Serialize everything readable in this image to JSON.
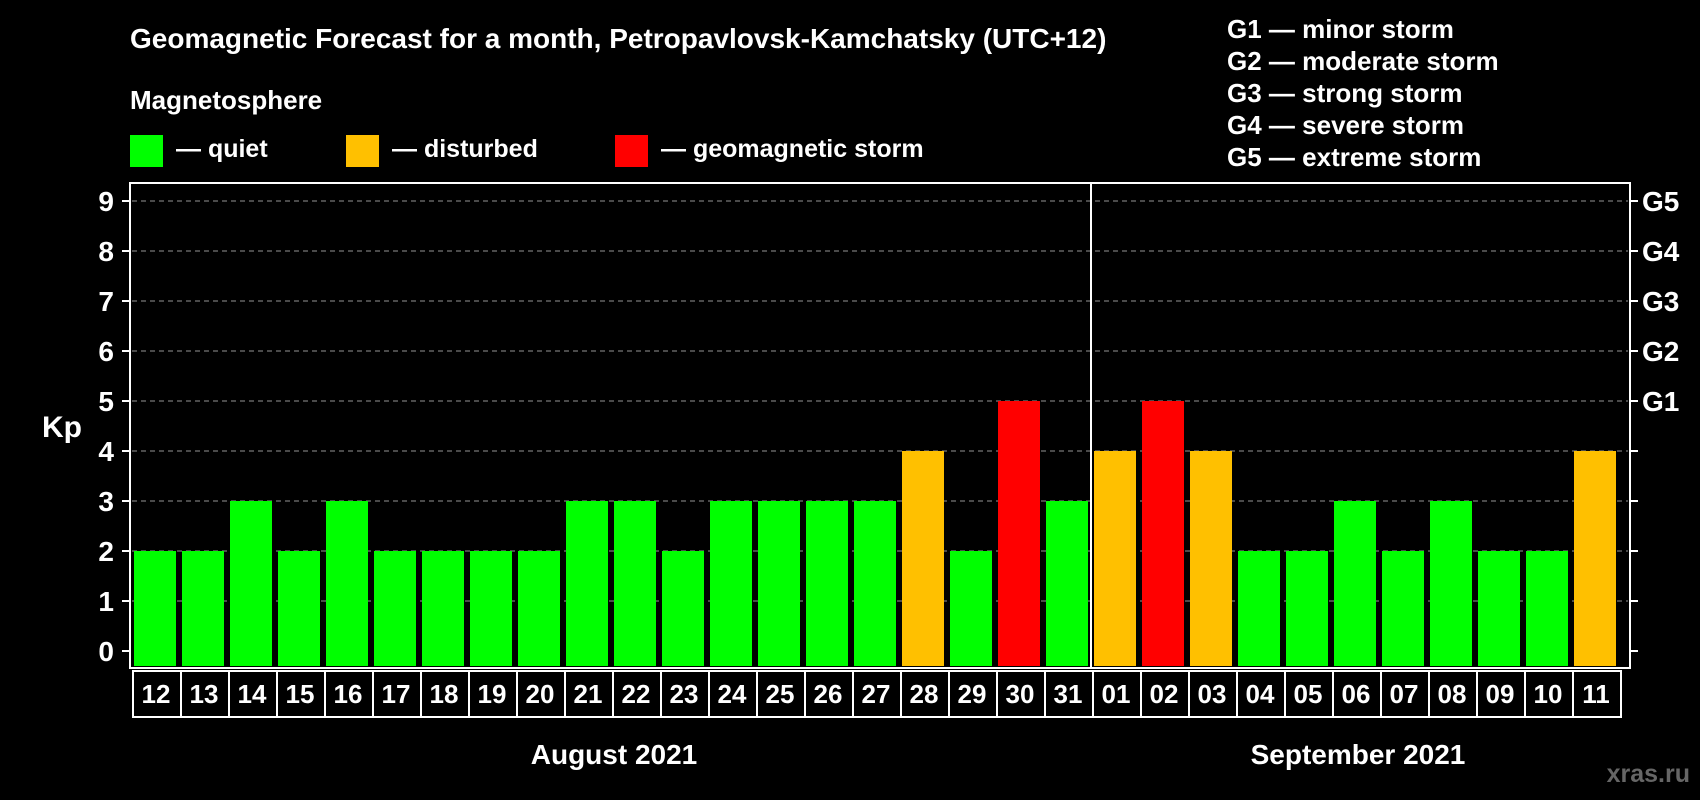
{
  "title": "Geomagnetic Forecast for a month, Petropavlovsk-Kamchatsky (UTC+12)",
  "legend": {
    "heading": "Magnetosphere",
    "items": [
      {
        "label": "— quiet",
        "color": "#00ff00"
      },
      {
        "label": "— disturbed",
        "color": "#ffc000"
      },
      {
        "label": "— geomagnetic storm",
        "color": "#ff0000"
      }
    ]
  },
  "storm_scale": [
    {
      "level": "G1",
      "text": "— minor storm"
    },
    {
      "level": "G2",
      "text": "— moderate storm"
    },
    {
      "level": "G3",
      "text": "— strong storm"
    },
    {
      "level": "G4",
      "text": "— severe storm"
    },
    {
      "level": "G5",
      "text": "— extreme storm"
    }
  ],
  "watermark": "xras.ru",
  "chart_data": {
    "type": "bar",
    "ylabel": "Kp",
    "ylim": [
      0,
      9
    ],
    "yticks": [
      "0",
      "1",
      "2",
      "3",
      "4",
      "5",
      "6",
      "7",
      "8",
      "9"
    ],
    "right_axis": [
      {
        "kp": 5,
        "label": "G1"
      },
      {
        "kp": 6,
        "label": "G2"
      },
      {
        "kp": 7,
        "label": "G3"
      },
      {
        "kp": 8,
        "label": "G4"
      },
      {
        "kp": 9,
        "label": "G5"
      }
    ],
    "gridlines": "dashed",
    "categories": [
      "12",
      "13",
      "14",
      "15",
      "16",
      "17",
      "18",
      "19",
      "20",
      "21",
      "22",
      "23",
      "24",
      "25",
      "26",
      "27",
      "28",
      "29",
      "30",
      "31",
      "01",
      "02",
      "03",
      "04",
      "05",
      "06",
      "07",
      "08",
      "09",
      "10",
      "11"
    ],
    "values": [
      2,
      2,
      3,
      2,
      3,
      2,
      2,
      2,
      2,
      3,
      3,
      2,
      3,
      3,
      3,
      3,
      4,
      2,
      5,
      3,
      4,
      5,
      4,
      2,
      2,
      3,
      2,
      3,
      2,
      2,
      4
    ],
    "colors": {
      "quiet": "#00ff00",
      "disturbed": "#ffc000",
      "storm": "#ff0000"
    },
    "months": [
      {
        "label": "August 2021",
        "first_index": 0,
        "last_index": 19
      },
      {
        "label": "September 2021",
        "first_index": 20,
        "last_index": 30
      }
    ]
  }
}
